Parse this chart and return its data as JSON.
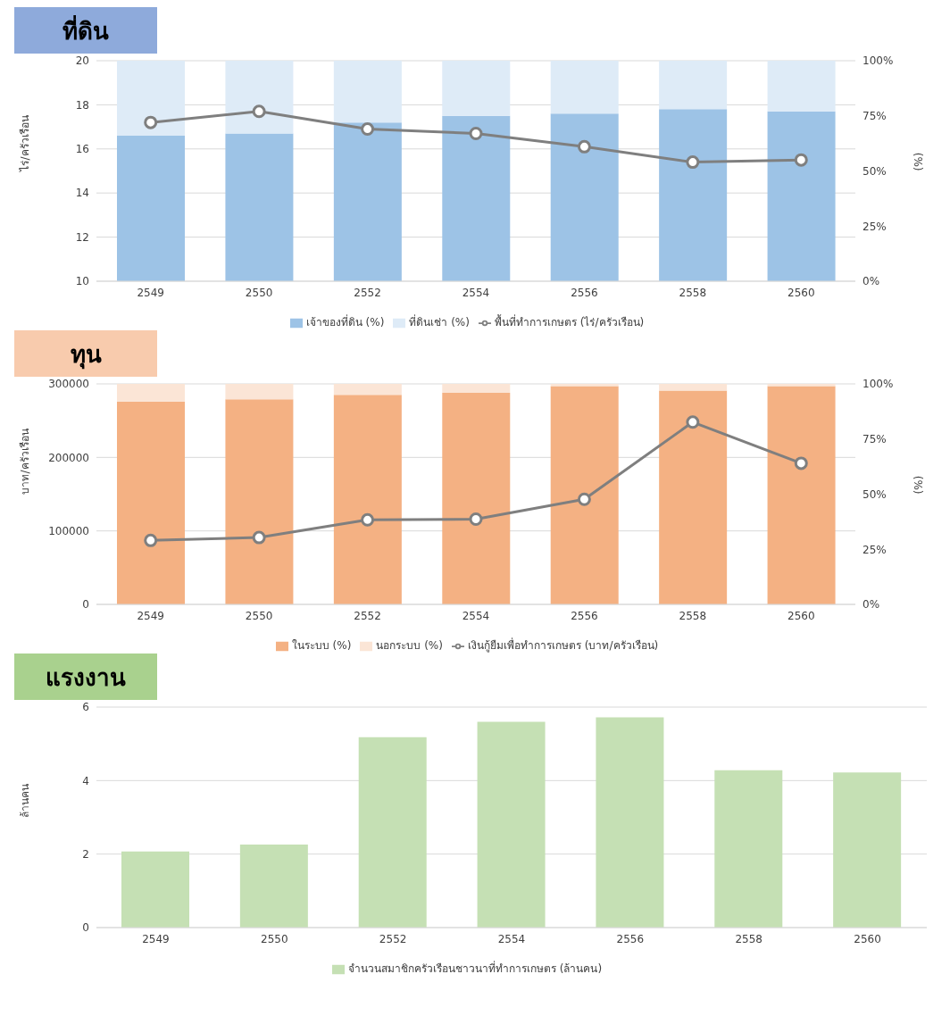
{
  "chart_data": [
    {
      "type": "bar",
      "title": "ที่ดิน",
      "ylabel": "ไร่/ครัวเรือน",
      "y2label": "(%)",
      "categories": [
        "2549",
        "2550",
        "2552",
        "2554",
        "2556",
        "2558",
        "2560"
      ],
      "stacked": true,
      "grid": "y",
      "legend": "bottom",
      "marker": "circle",
      "line_style": "solid",
      "ylim": [
        10,
        20
      ],
      "yticks": [
        10,
        12,
        14,
        16,
        18,
        20
      ],
      "y2lim": [
        0,
        100
      ],
      "y2ticks": [
        {
          "value": 0,
          "label": "0%"
        },
        {
          "value": 25,
          "label": "25%"
        },
        {
          "value": 50,
          "label": "50%"
        },
        {
          "value": 75,
          "label": "75%"
        },
        {
          "value": 100,
          "label": "100%"
        }
      ],
      "series": [
        {
          "name": "เจ้าของที่ดิน (%)",
          "axis": "y2",
          "color": "#9dc3e6",
          "values": [
            66,
            67,
            72,
            75,
            76,
            78,
            77
          ]
        },
        {
          "name": "ที่ดินเช่า (%)",
          "axis": "y2",
          "color": "#deebf7",
          "values": [
            34,
            33,
            28,
            25,
            24,
            22,
            23
          ]
        },
        {
          "name": "พื้นที่ทำการเกษตร (ไร่/ครัวเรือน)",
          "type": "line",
          "color": "#7f7f7f",
          "values": [
            17.2,
            17.7,
            16.9,
            16.7,
            16.1,
            15.4,
            15.5
          ]
        }
      ]
    },
    {
      "type": "bar",
      "title": "ทุน",
      "ylabel": "บาท/ครัวเรือน",
      "y2label": "(%)",
      "categories": [
        "2549",
        "2550",
        "2552",
        "2554",
        "2556",
        "2558",
        "2560"
      ],
      "stacked": true,
      "grid": "y",
      "legend": "bottom",
      "marker": "circle",
      "line_style": "solid",
      "ylim": [
        0,
        300000
      ],
      "yticks": [
        0,
        100000,
        200000,
        300000
      ],
      "y2lim": [
        0,
        100
      ],
      "y2ticks": [
        {
          "value": 0,
          "label": "0%"
        },
        {
          "value": 25,
          "label": "25%"
        },
        {
          "value": 50,
          "label": "50%"
        },
        {
          "value": 75,
          "label": "75%"
        },
        {
          "value": 100,
          "label": "100%"
        }
      ],
      "series": [
        {
          "name": "ในระบบ (%)",
          "axis": "y2",
          "color": "#f4b183",
          "values": [
            92,
            93,
            95,
            96,
            99,
            97,
            99
          ]
        },
        {
          "name": "นอกระบบ (%)",
          "axis": "y2",
          "color": "#fbe5d6",
          "values": [
            8,
            7,
            5,
            4,
            1,
            3,
            1
          ]
        },
        {
          "name": "เงินกู้ยืมเพื่อทำการเกษตร (บาท/ครัวเรือน)",
          "type": "line",
          "color": "#7f7f7f",
          "values": [
            87000,
            91000,
            115000,
            116000,
            143000,
            248000,
            192000
          ]
        }
      ]
    },
    {
      "type": "bar",
      "title": "แรงงาน",
      "ylabel": "ล้านคน",
      "categories": [
        "2549",
        "2550",
        "2552",
        "2554",
        "2556",
        "2558",
        "2560"
      ],
      "grid": "y",
      "legend": "bottom",
      "ylim": [
        0,
        6
      ],
      "yticks": [
        0,
        2,
        4,
        6
      ],
      "series": [
        {
          "name": "จำนวนสมาชิกครัวเรือนชาวนาที่ทำการเกษตร (ล้านคน)",
          "color": "#c5e0b4",
          "values": [
            2.07,
            2.26,
            5.18,
            5.6,
            5.72,
            4.28,
            4.22
          ]
        }
      ]
    }
  ]
}
